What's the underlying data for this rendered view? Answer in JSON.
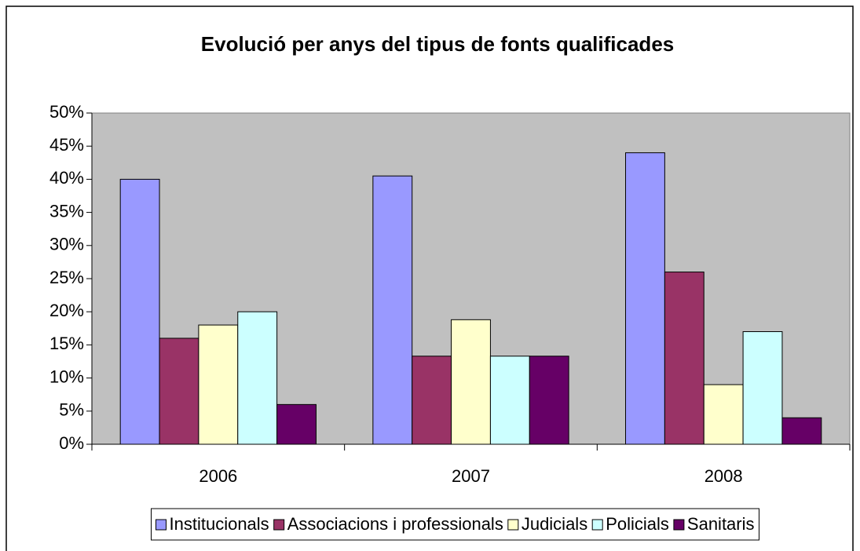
{
  "chart_data": {
    "type": "bar",
    "title": "Evolució per anys del tipus de fonts qualificades",
    "categories": [
      "2006",
      "2007",
      "2008"
    ],
    "series": [
      {
        "name": "Institucionals",
        "color": "#9999ff",
        "values": [
          40,
          40.5,
          44
        ]
      },
      {
        "name": "Associacions i professionals",
        "color": "#993366",
        "values": [
          16,
          13.3,
          26
        ]
      },
      {
        "name": "Judicials",
        "color": "#ffffcc",
        "values": [
          18,
          18.8,
          9
        ]
      },
      {
        "name": "Policials",
        "color": "#ccffff",
        "values": [
          20,
          13.3,
          17
        ]
      },
      {
        "name": "Sanitaris",
        "color": "#660066",
        "values": [
          6,
          13.3,
          4
        ]
      }
    ],
    "ylim": [
      0,
      50
    ],
    "yticks": [
      {
        "value": 0,
        "label": "0%"
      },
      {
        "value": 5,
        "label": "5%"
      },
      {
        "value": 10,
        "label": "10%"
      },
      {
        "value": 15,
        "label": "15%"
      },
      {
        "value": 20,
        "label": "20%"
      },
      {
        "value": 25,
        "label": "25%"
      },
      {
        "value": 30,
        "label": "30%"
      },
      {
        "value": 35,
        "label": "35%"
      },
      {
        "value": 40,
        "label": "40%"
      },
      {
        "value": 45,
        "label": "45%"
      },
      {
        "value": 50,
        "label": "50%"
      }
    ],
    "plot_background": "#c0c0c0",
    "legend": "bottom"
  }
}
